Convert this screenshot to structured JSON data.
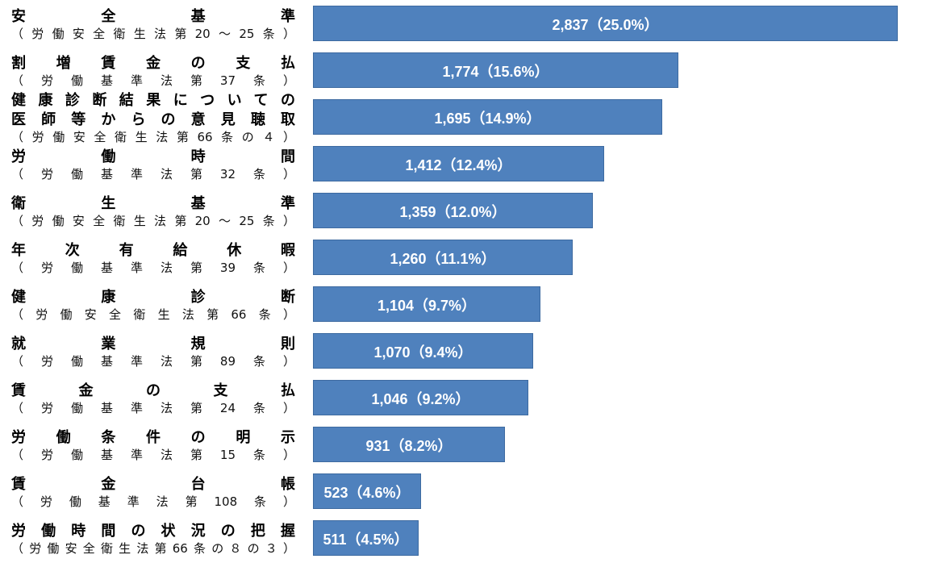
{
  "chart_data": {
    "type": "bar",
    "orientation": "horizontal",
    "bar_color": "#4f81bd",
    "label_color": "#ffffff",
    "xlim": [
      0,
      2837
    ],
    "categories": [
      {
        "main": "安全基準",
        "sub": "（労働安全衛生法第20～25条）"
      },
      {
        "main": "割増賃金の支払",
        "sub": "（労働基準法第37条）"
      },
      {
        "main": "健康診断結果についての医師等からの意見聴取",
        "sub": "（労働安全衛生法第66条の４）",
        "main_lines": [
          "健康診断結果についての",
          "医師等からの意見聴取"
        ]
      },
      {
        "main": "労働時間",
        "sub": "（労働基準法第32条）"
      },
      {
        "main": "衛生基準",
        "sub": "（労働安全衛生法第20～25条）"
      },
      {
        "main": "年次有給休暇",
        "sub": "（労働基準法第39条）"
      },
      {
        "main": "健康診断",
        "sub": "（労働安全衛生法第66条）"
      },
      {
        "main": "就業規則",
        "sub": "（労働基準法第89条）"
      },
      {
        "main": "賃金の支払",
        "sub": "（労働基準法第24条）"
      },
      {
        "main": "労働条件の明示",
        "sub": "（労働基準法第15条）"
      },
      {
        "main": "賃金台帳",
        "sub": "（労働基準法第108条）"
      },
      {
        "main": "労働時間の状況の把握",
        "sub": "（労働安全衛生法第66条の８の３）"
      }
    ],
    "values": [
      2837,
      1774,
      1695,
      1412,
      1359,
      1260,
      1104,
      1070,
      1046,
      931,
      523,
      511
    ],
    "data_labels": [
      "2,837（25.0%）",
      "1,774（15.6%）",
      "1,695（14.9%）",
      "1,412（12.4%）",
      "1,359（12.0%）",
      "1,260（11.1%）",
      "1,104（9.7%）",
      "1,070（9.4%）",
      "1,046（9.2%）",
      "931（8.2%）",
      "523（4.6%）",
      "511（4.5%）"
    ]
  }
}
